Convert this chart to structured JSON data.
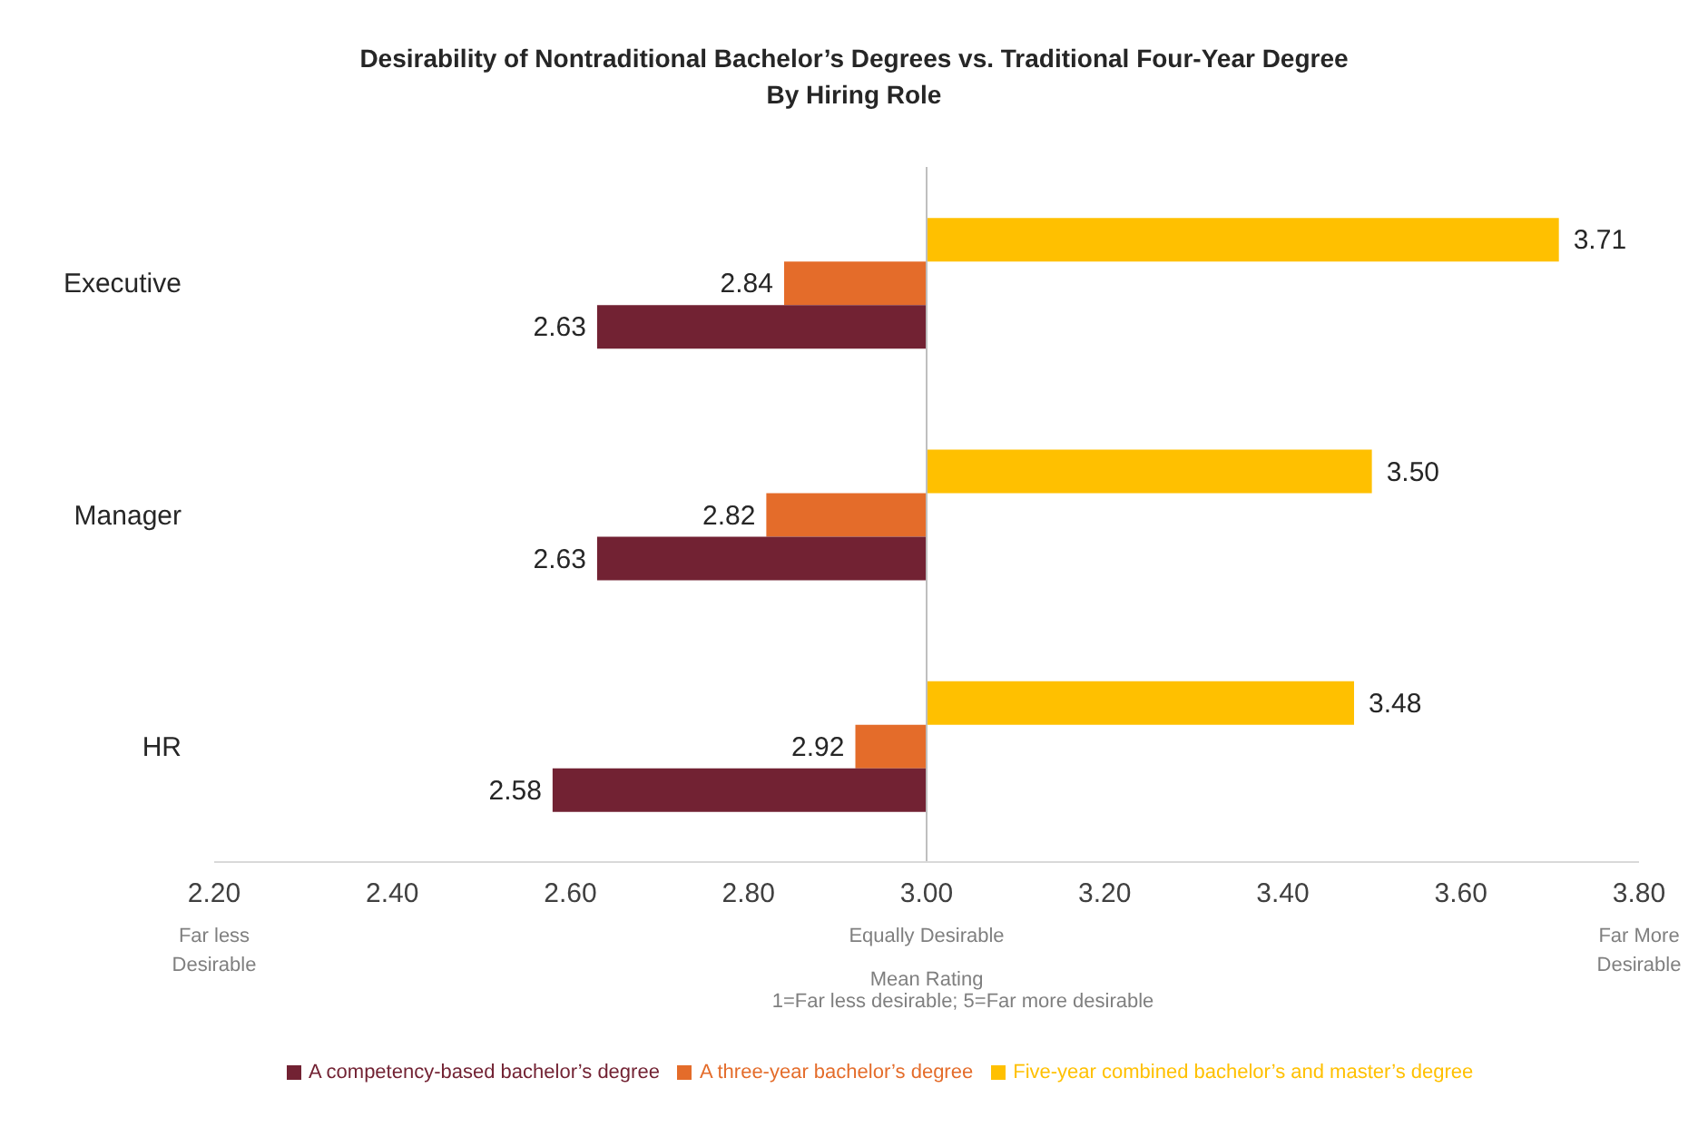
{
  "chart_data": {
    "type": "bar",
    "orientation": "horizontal",
    "title": "Desirability of Nontraditional Bachelor’s Degrees vs. Traditional Four-Year Degree\nBy Hiring Role",
    "categories": [
      "Executive",
      "Manager",
      "HR"
    ],
    "series": [
      {
        "name": "Five-year combined bachelor’s and master’s degree",
        "color": "#ffc000",
        "base": [
          3,
          3,
          3
        ],
        "values": [
          0.71,
          0.5,
          0.48
        ],
        "value_labels": [
          "3.71",
          "3.50",
          "3.48"
        ]
      },
      {
        "name": "A three-year bachelor’s degree",
        "color": "#e46c2a",
        "base": [
          3,
          3,
          3
        ],
        "values": [
          -0.16,
          -0.18,
          -0.08
        ],
        "value_labels": [
          "2.84",
          "2.82",
          "2.92"
        ]
      },
      {
        "name": "A competency-based bachelor’s degree",
        "color": "#722233",
        "base": [
          3,
          3,
          3
        ],
        "values": [
          -0.37,
          -0.37,
          -0.42
        ],
        "value_labels": [
          "2.63",
          "2.63",
          "2.58"
        ]
      }
    ],
    "xlim": [
      2.2,
      3.8
    ],
    "xticks": [
      {
        "value": 2.2,
        "label": "2.20\nFar less\nDesirable"
      },
      {
        "value": 2.4,
        "label": "2.40"
      },
      {
        "value": 2.6,
        "label": "2.60"
      },
      {
        "value": 2.8,
        "label": "2.80"
      },
      {
        "value": 3.0,
        "label": "3.00\nEqually Desirable"
      },
      {
        "value": 3.2,
        "label": "3.20"
      },
      {
        "value": 3.4,
        "label": "3.40"
      },
      {
        "value": 3.6,
        "label": "3.60"
      },
      {
        "value": 3.8,
        "label": "3.80\nFar More\nDesirable"
      }
    ],
    "xlabel": "Mean Rating",
    "annotations": [
      "1=Far less desirable; 5=Far more desirable"
    ],
    "ref_lines": [
      {
        "axis": "x",
        "value": 3,
        "color": "#bfbfbf"
      }
    ],
    "grid": false,
    "legend": "bottom"
  }
}
